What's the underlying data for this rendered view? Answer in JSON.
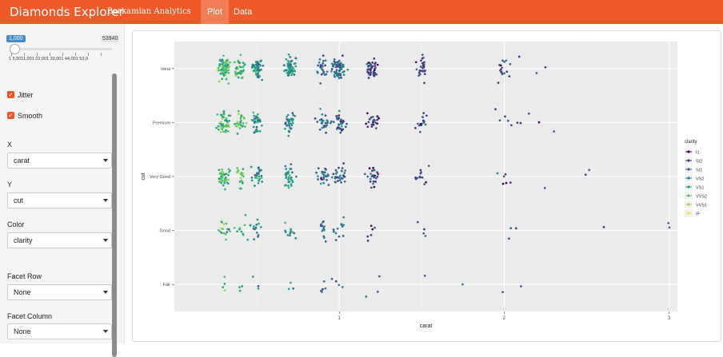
{
  "navbar": {
    "title": "Diamonds Explorer",
    "subtitle": "Barkamian Analytics",
    "tabs": [
      {
        "label": "Plot",
        "active": true
      },
      {
        "label": "Data",
        "active": false
      }
    ]
  },
  "sidebar": {
    "sample_size": {
      "value": "1,000",
      "max_display": "53940",
      "tick_labels": "1   5,5011,001   22,001   33,001   44,001   53,9",
      "fill_fraction": 0.0
    },
    "jitter": {
      "label": "Jitter",
      "checked": true
    },
    "smooth": {
      "label": "Smooth",
      "checked": true
    },
    "x": {
      "label": "X",
      "value": "carat"
    },
    "y": {
      "label": "Y",
      "value": "cut"
    },
    "color": {
      "label": "Color",
      "value": "clarity"
    },
    "facet_row": {
      "label": "Facet Row",
      "value": "None"
    },
    "facet_column": {
      "label": "Facet Column",
      "value": "None"
    }
  },
  "colors": {
    "navbar": "#ef5a28",
    "panel_bg": "#ebebeb",
    "checkbox": "#f0541e",
    "clarity_palette": [
      "#440154",
      "#46337e",
      "#365c8d",
      "#277f8e",
      "#1fa187",
      "#4ac16d",
      "#a0da39",
      "#fde725"
    ]
  },
  "chart_data": {
    "type": "scatter",
    "title": "",
    "xlabel": "carat",
    "ylabel": "cut",
    "xlim": [
      0.0,
      3.05
    ],
    "x_ticks": [
      "1",
      "2",
      "3"
    ],
    "y_categories": [
      "Fair",
      "Good",
      "Very Good",
      "Premium",
      "Ideal"
    ],
    "legend": {
      "title": "clarity",
      "position": "right",
      "entries": [
        "I1",
        "SI2",
        "SI1",
        "VS2",
        "VS1",
        "VVS2",
        "VVS1",
        "IF"
      ]
    },
    "grid": true,
    "jitter": true,
    "sample_size": 1000,
    "points_per_cut": [
      28,
      92,
      220,
      258,
      402
    ],
    "carat_clusters": [
      {
        "carat": 0.3,
        "weight": 6,
        "spread": 0.035
      },
      {
        "carat": 0.4,
        "weight": 3,
        "spread": 0.03
      },
      {
        "carat": 0.5,
        "weight": 4,
        "spread": 0.03
      },
      {
        "carat": 0.7,
        "weight": 5,
        "spread": 0.03
      },
      {
        "carat": 0.9,
        "weight": 3,
        "spread": 0.03
      },
      {
        "carat": 1.0,
        "weight": 5,
        "spread": 0.04
      },
      {
        "carat": 1.2,
        "weight": 3,
        "spread": 0.04
      },
      {
        "carat": 1.5,
        "weight": 2,
        "spread": 0.04
      },
      {
        "carat": 2.0,
        "weight": 1,
        "spread": 0.06
      }
    ],
    "outliers": [
      {
        "cut": "Ideal",
        "carat": 2.2
      },
      {
        "cut": "Ideal",
        "carat": 2.25
      },
      {
        "cut": "Ideal",
        "carat": 2.0
      },
      {
        "cut": "Ideal",
        "carat": 2.1
      },
      {
        "cut": "Premium",
        "carat": 2.2
      },
      {
        "cut": "Premium",
        "carat": 2.3
      },
      {
        "cut": "Premium",
        "carat": 2.1
      },
      {
        "cut": "Premium",
        "carat": 2.15
      },
      {
        "cut": "Very Good",
        "carat": 2.5
      },
      {
        "cut": "Very Good",
        "carat": 2.5
      },
      {
        "cut": "Very Good",
        "carat": 2.25
      },
      {
        "cut": "Good",
        "carat": 2.6
      },
      {
        "cut": "Good",
        "carat": 3.0
      },
      {
        "cut": "Good",
        "carat": 3.0
      },
      {
        "cut": "Good",
        "carat": 2.07
      },
      {
        "cut": "Fair",
        "carat": 2.1
      },
      {
        "cut": "Fair",
        "carat": 1.75
      }
    ]
  }
}
